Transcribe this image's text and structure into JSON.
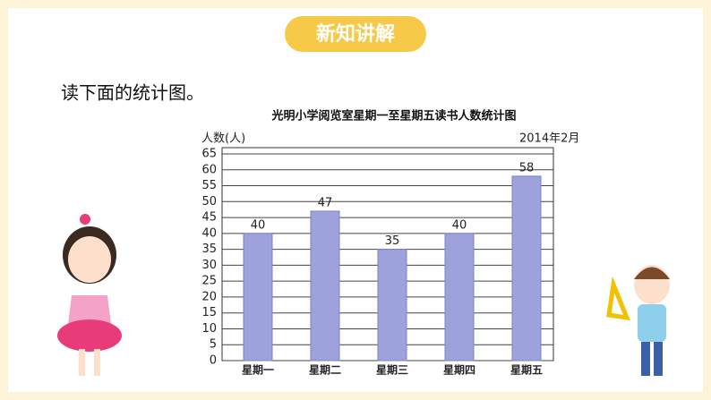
{
  "header": {
    "title": "新知讲解"
  },
  "instruction": "读下面的统计图。",
  "chart_data": {
    "type": "bar",
    "title": "光明小学阅览室星期一至星期五读书人数统计图",
    "y_label": "人数(人)",
    "note": "2014年2月",
    "categories": [
      "星期一",
      "星期二",
      "星期三",
      "星期四",
      "星期五"
    ],
    "values": [
      40,
      47,
      35,
      40,
      58
    ],
    "color": "#9da2dc",
    "ylim": [
      0,
      65
    ],
    "yticks": [
      0,
      5,
      10,
      15,
      20,
      25,
      30,
      35,
      40,
      45,
      50,
      55,
      60,
      65
    ],
    "grid": true,
    "show_values": true
  }
}
